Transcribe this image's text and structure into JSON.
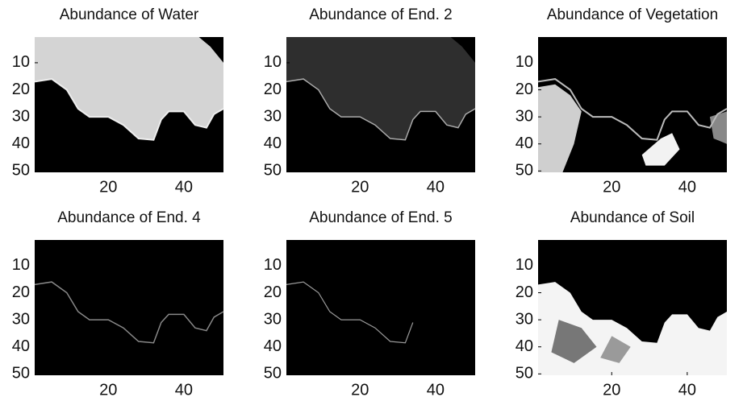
{
  "chart_data": [
    {
      "type": "image",
      "title": "Abundance of Water",
      "colormap": "gray",
      "xlim": [
        0.5,
        50.5
      ],
      "ylim": [
        0.5,
        50.5
      ],
      "y_inverted": true,
      "xticks": [
        20,
        40
      ],
      "yticks": [
        10,
        20,
        30,
        40,
        50
      ]
    },
    {
      "type": "image",
      "title": "Abundance of End. 2",
      "colormap": "gray",
      "xlim": [
        0.5,
        50.5
      ],
      "ylim": [
        0.5,
        50.5
      ],
      "y_inverted": true,
      "xticks": [
        20,
        40
      ],
      "yticks": [
        10,
        20,
        30,
        40,
        50
      ]
    },
    {
      "type": "image",
      "title": "Abundance of Vegetation",
      "colormap": "gray",
      "xlim": [
        0.5,
        50.5
      ],
      "ylim": [
        0.5,
        50.5
      ],
      "y_inverted": true,
      "xticks": [
        20,
        40
      ],
      "yticks": [
        10,
        20,
        30,
        40,
        50
      ]
    },
    {
      "type": "image",
      "title": "Abundance of End. 4",
      "colormap": "gray",
      "xlim": [
        0.5,
        50.5
      ],
      "ylim": [
        0.5,
        50.5
      ],
      "y_inverted": true,
      "xticks": [
        20,
        40
      ],
      "yticks": [
        10,
        20,
        30,
        40,
        50
      ]
    },
    {
      "type": "image",
      "title": "Abundance of End. 5",
      "colormap": "gray",
      "xlim": [
        0.5,
        50.5
      ],
      "ylim": [
        0.5,
        50.5
      ],
      "y_inverted": true,
      "xticks": [
        20,
        40
      ],
      "yticks": [
        10,
        20,
        30,
        40,
        50
      ]
    },
    {
      "type": "image",
      "title": "Abundance of Soil",
      "colormap": "gray",
      "xlim": [
        0.5,
        50.5
      ],
      "ylim": [
        0.5,
        50.5
      ],
      "y_inverted": true,
      "xticks": [
        20,
        40
      ],
      "yticks": [
        10,
        20,
        30,
        40,
        50
      ]
    }
  ]
}
